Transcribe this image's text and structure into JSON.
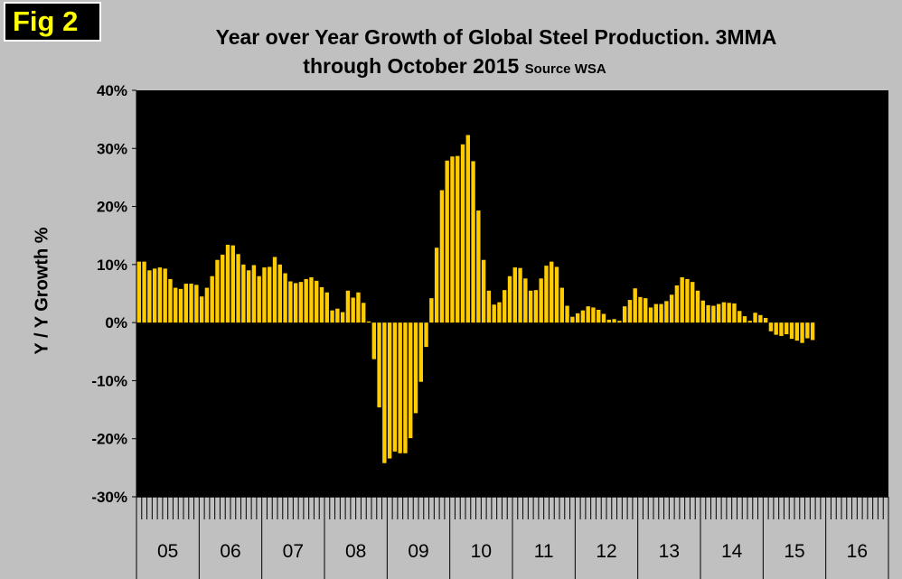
{
  "fig_label": "Fig 2",
  "title_line1": "Year over Year Growth of Global Steel Production. 3MMA",
  "title_line2": "through October 2015",
  "title_source": "Source WSA",
  "colors": {
    "bar": "#ffcc00",
    "plot_bg": "#000000",
    "page_bg": "#c0c0c0",
    "fig_label_text": "#ffff00"
  },
  "chart_data": {
    "type": "bar",
    "title": "Year over Year Growth of Global Steel Production. 3MMA through October 2015",
    "subtitle": "Source WSA",
    "xlabel": "",
    "ylabel": "Y / Y Growth %",
    "ylim": [
      -30,
      40
    ],
    "yticks": [
      -30,
      -20,
      -10,
      0,
      10,
      20,
      30,
      40
    ],
    "ytick_labels": [
      "-30%",
      "-20%",
      "-10%",
      "0%",
      "10%",
      "20%",
      "30%",
      "40%"
    ],
    "year_labels": [
      "05",
      "06",
      "07",
      "08",
      "09",
      "10",
      "11",
      "12",
      "13",
      "14",
      "15",
      "16"
    ],
    "months_per_year": 12,
    "grid": false,
    "legend": "none",
    "series": [
      {
        "name": "3MMA Y/Y growth %",
        "start": "2005-01",
        "values": [
          10.5,
          10.5,
          9.0,
          9.3,
          9.5,
          9.3,
          7.5,
          6.0,
          5.8,
          6.7,
          6.7,
          6.5,
          4.5,
          6.0,
          8.0,
          10.8,
          11.7,
          13.4,
          13.3,
          11.8,
          10.0,
          9.0,
          9.9,
          8.0,
          9.5,
          9.6,
          11.3,
          10.0,
          8.5,
          7.1,
          6.8,
          7.0,
          7.5,
          7.8,
          7.2,
          6.1,
          5.2,
          2.1,
          2.4,
          1.8,
          5.5,
          4.3,
          5.2,
          3.4,
          0.2,
          -6.3,
          -14.6,
          -24.2,
          -23.4,
          -22.2,
          -22.5,
          -22.5,
          -19.9,
          -15.6,
          -10.2,
          -4.2,
          4.2,
          12.9,
          22.8,
          27.9,
          28.6,
          28.7,
          30.7,
          32.3,
          27.8,
          19.3,
          10.8,
          5.5,
          3.1,
          3.5,
          5.6,
          8.0,
          9.5,
          9.4,
          7.6,
          5.5,
          5.6,
          7.6,
          9.8,
          10.5,
          9.6,
          6.0,
          2.9,
          1.0,
          1.6,
          2.1,
          2.8,
          2.6,
          2.2,
          1.5,
          0.5,
          0.6,
          0.3,
          2.8,
          3.9,
          5.9,
          4.4,
          4.2,
          2.6,
          3.2,
          3.2,
          3.7,
          4.8,
          6.4,
          7.8,
          7.5,
          7.0,
          5.5,
          3.8,
          3.0,
          2.9,
          3.2,
          3.5,
          3.4,
          3.3,
          2.0,
          1.1,
          0.3,
          1.7,
          1.3,
          0.8,
          -1.5,
          -2.1,
          -2.3,
          -2.0,
          -2.8,
          -3.1,
          -3.5,
          -2.7,
          -3.0
        ]
      }
    ]
  }
}
